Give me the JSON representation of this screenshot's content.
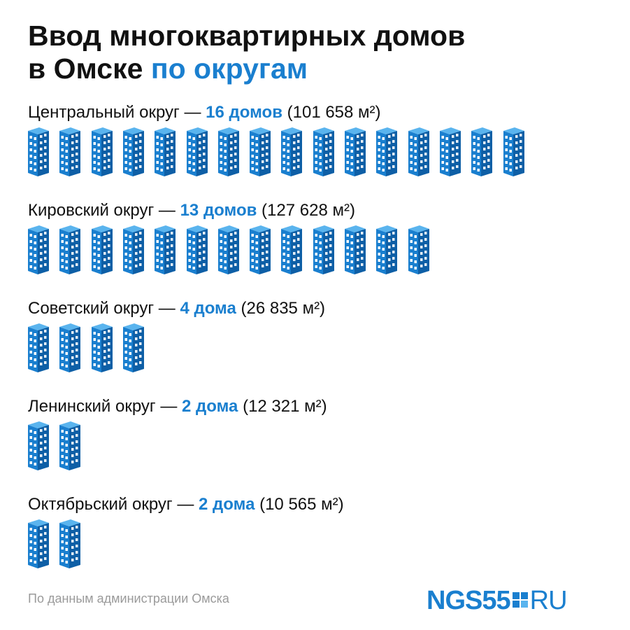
{
  "title": {
    "line1": "Ввод многоквартирных домов",
    "line2_plain": "в Омске",
    "line2_accent": "по округам"
  },
  "colors": {
    "accent": "#1a7fcf",
    "building_front": "#1a7fcf",
    "building_side": "#0e5fa6",
    "building_top": "#5ab4ee",
    "window": "#ffffff"
  },
  "chart_data": {
    "type": "bar",
    "categories": [
      "Центральный округ",
      "Кировский округ",
      "Советский округ",
      "Ленинский округ",
      "Октябрьский округ"
    ],
    "series": [
      {
        "values": [
          16,
          13,
          4,
          2,
          2
        ]
      }
    ],
    "rows": [
      {
        "district": "Центральный округ",
        "dash": "—",
        "count": 16,
        "count_label": "16 домов",
        "area": "(101 658 м²)"
      },
      {
        "district": "Кировский округ",
        "dash": "—",
        "count": 13,
        "count_label": "13 домов",
        "area": "(127 628 м²)"
      },
      {
        "district": "Советский округ",
        "dash": "—",
        "count": 4,
        "count_label": "4 дома",
        "area": "(26 835 м²)"
      },
      {
        "district": "Ленинский округ",
        "dash": "—",
        "count": 2,
        "count_label": "2 дома",
        "area": "(12 321 м²)"
      },
      {
        "district": "Октябрьский округ",
        "dash": "—",
        "count": 2,
        "count_label": "2 дома",
        "area": "(10 565 м²)"
      }
    ]
  },
  "footer": {
    "source": "По данным администрации Омска",
    "logo_main": "NGS55",
    "logo_suffix": "RU"
  }
}
